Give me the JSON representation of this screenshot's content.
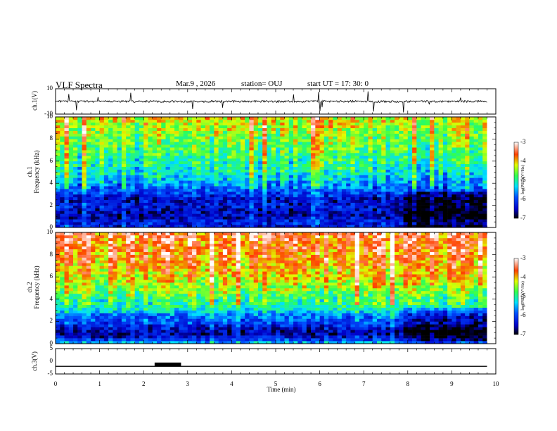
{
  "header": {
    "title": "VLF Spectra",
    "date": "Mar.9 , 2026",
    "station": "station= OUJ",
    "start": "start UT = 17: 30: 0"
  },
  "chart_data": [
    {
      "type": "line",
      "name": "ch1-waveform",
      "ylabel": "ch.1(V)",
      "ylim": [
        -10,
        10
      ],
      "yticks": [
        -10,
        10
      ],
      "xlim": [
        0,
        10
      ],
      "baseline": 0,
      "series": [
        {
          "name": "ch.1",
          "note": "noisy waveform around 0 V, amplitude about 1 V, sporadic spikes"
        }
      ]
    },
    {
      "type": "heatmap",
      "name": "ch1-spectrogram",
      "ylabel": "ch.1\nFrequency (kHz)",
      "ylim": [
        0,
        10
      ],
      "yticks": [
        0,
        2,
        4,
        6,
        8,
        10
      ],
      "xlim": [
        0,
        10
      ],
      "data_end_min": 9.8,
      "colorbar": {
        "label": "log(PSD)(V²/Hz)",
        "range": [
          -7,
          -3
        ],
        "ticks": [
          "-3",
          "-4",
          "-5",
          "-6",
          "-7"
        ]
      },
      "profile_log_psd": [
        {
          "f": 0.0,
          "v": -6.3
        },
        {
          "f": 0.5,
          "v": -6.2
        },
        {
          "f": 1.0,
          "v": -6.6
        },
        {
          "f": 1.5,
          "v": -6.5
        },
        {
          "f": 2.0,
          "v": -6.3
        },
        {
          "f": 2.5,
          "v": -6.5
        },
        {
          "f": 3.0,
          "v": -6.1
        },
        {
          "f": 3.5,
          "v": -5.9
        },
        {
          "f": 4.0,
          "v": -5.6
        },
        {
          "f": 5.0,
          "v": -5.2
        },
        {
          "f": 6.0,
          "v": -5.0
        },
        {
          "f": 7.0,
          "v": -4.8
        },
        {
          "f": 8.0,
          "v": -4.6
        },
        {
          "f": 9.0,
          "v": -4.4
        },
        {
          "f": 10.0,
          "v": -4.2
        }
      ],
      "change_at_min": 7.9
    },
    {
      "type": "heatmap",
      "name": "ch2-spectrogram",
      "ylabel": "ch.2\nFrequency (kHz)",
      "ylim": [
        0,
        10
      ],
      "yticks": [
        0,
        2,
        4,
        6,
        8,
        10
      ],
      "xlim": [
        0,
        10
      ],
      "data_end_min": 9.8,
      "colorbar": {
        "label": "log(PSD)(V²/Hz)",
        "range": [
          -7,
          -3
        ],
        "ticks": [
          "-3",
          "-4",
          "-5",
          "-6",
          "-7"
        ]
      },
      "profile_log_psd": [
        {
          "f": 0.0,
          "v": -5.3
        },
        {
          "f": 0.5,
          "v": -6.3
        },
        {
          "f": 1.0,
          "v": -6.6
        },
        {
          "f": 1.5,
          "v": -6.3
        },
        {
          "f": 2.0,
          "v": -5.9
        },
        {
          "f": 2.5,
          "v": -5.8
        },
        {
          "f": 3.0,
          "v": -5.2
        },
        {
          "f": 3.5,
          "v": -4.9
        },
        {
          "f": 4.0,
          "v": -4.8
        },
        {
          "f": 5.0,
          "v": -4.4
        },
        {
          "f": 6.0,
          "v": -4.1
        },
        {
          "f": 7.0,
          "v": -3.9
        },
        {
          "f": 8.0,
          "v": -3.7
        },
        {
          "f": 9.0,
          "v": -3.6
        },
        {
          "f": 10.0,
          "v": -3.5
        }
      ],
      "change_at_min": 7.9
    },
    {
      "type": "line",
      "name": "ch3-waveform",
      "ylabel": "ch.3(V)",
      "ylim": [
        -5,
        5
      ],
      "yticks": [
        -5,
        0,
        5
      ],
      "xlim": [
        0,
        10
      ],
      "series": [
        {
          "name": "ch.3",
          "value": -2.0,
          "pulse": {
            "from_min": 2.25,
            "to_min": 2.85,
            "value": -0.5
          }
        }
      ]
    }
  ],
  "x_axis": {
    "label": "Time (min)",
    "ticks": [
      "0",
      "1",
      "2",
      "3",
      "4",
      "5",
      "6",
      "7",
      "8",
      "9",
      "10"
    ]
  }
}
